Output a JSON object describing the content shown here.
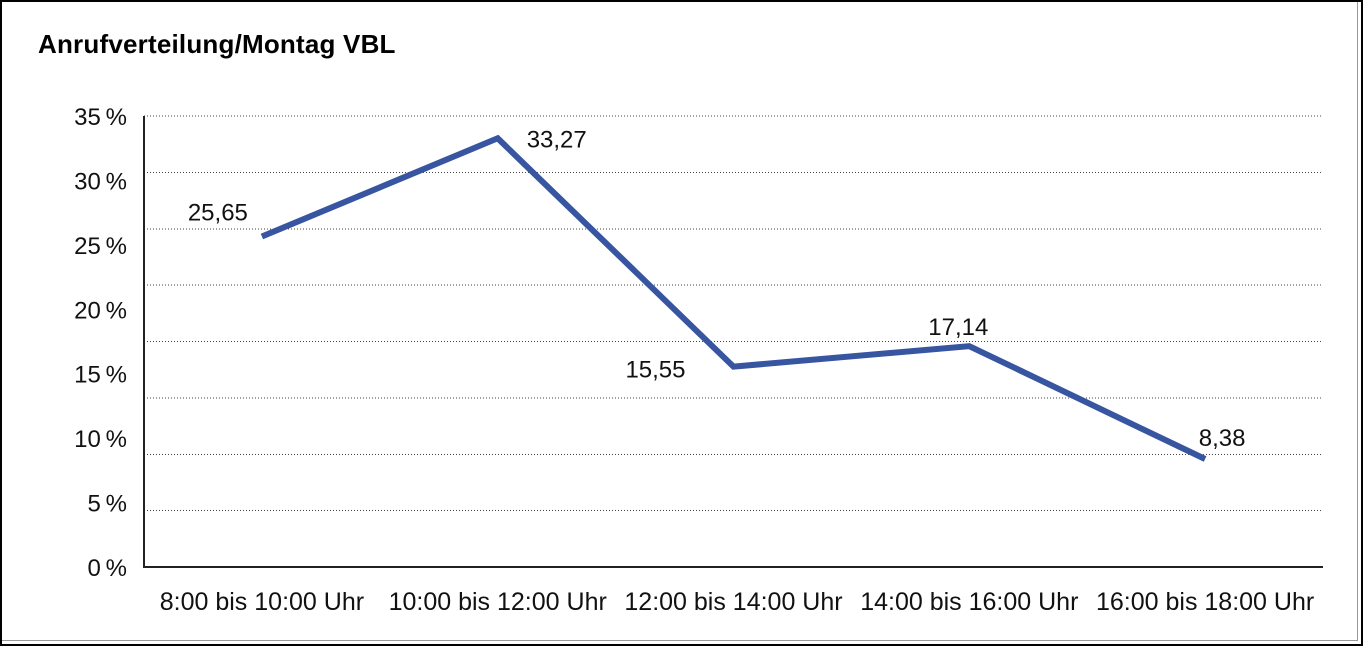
{
  "chart_data": {
    "type": "line",
    "title": "Anrufverteilung/Montag VBL",
    "categories": [
      "8:00 bis 10:00 Uhr",
      "10:00 bis 12:00 Uhr",
      "12:00 bis 14:00 Uhr",
      "14:00 bis 16:00 Uhr",
      "16:00 bis 18:00 Uhr"
    ],
    "values": [
      25.65,
      33.27,
      15.55,
      17.14,
      8.38
    ],
    "point_labels": [
      "25,65",
      "33,27",
      "15,55",
      "17,14",
      "8,38"
    ],
    "ytick_labels": [
      "35 %",
      "30 %",
      "25 %",
      "20 %",
      "15 %",
      "10 %",
      "5 %",
      "0 %"
    ],
    "ytick_values": [
      35,
      30,
      25,
      20,
      15,
      10,
      5,
      0
    ],
    "ylim": [
      0,
      35
    ],
    "xlabel": "",
    "ylabel": "",
    "grid": "horizontal-dotted",
    "n_gridlines": 8,
    "legend": "none",
    "line_color": "#3755a0",
    "text_color": "#111111",
    "axis_color": "#222222",
    "grid_color": "#444444"
  }
}
